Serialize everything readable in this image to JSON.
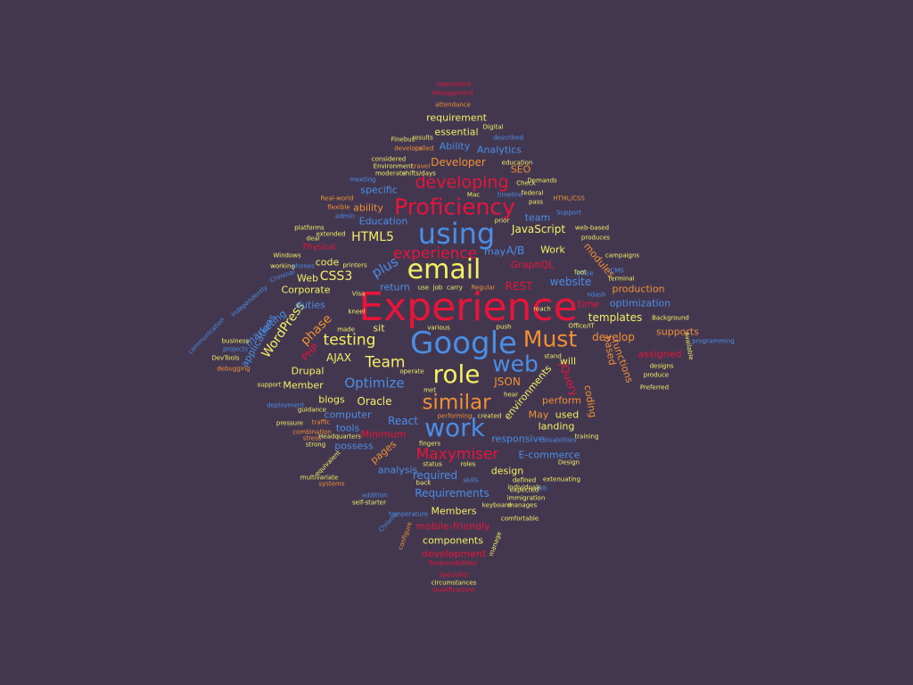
{
  "palette": {
    "background": "#433750",
    "red": "#E8143A",
    "blue": "#4A8FE6",
    "yellow": "#F4F064",
    "orange": "#F29132"
  },
  "words": [
    {
      "text": "Experience",
      "color": "red",
      "weight": 48
    },
    {
      "text": "Google",
      "color": "blue",
      "weight": 38
    },
    {
      "text": "email",
      "color": "yellow",
      "weight": 34
    },
    {
      "text": "using",
      "color": "blue",
      "weight": 36
    },
    {
      "text": "work",
      "color": "blue",
      "weight": 32
    },
    {
      "text": "role",
      "color": "yellow",
      "weight": 32
    },
    {
      "text": "Must",
      "color": "orange",
      "weight": 28
    },
    {
      "text": "web",
      "color": "blue",
      "weight": 28
    },
    {
      "text": "Proficiency",
      "color": "red",
      "weight": 28
    },
    {
      "text": "similar",
      "color": "orange",
      "weight": 26
    },
    {
      "text": "developing",
      "color": "red",
      "weight": 22
    },
    {
      "text": "experience",
      "color": "red",
      "weight": 20
    },
    {
      "text": "Maxymiser",
      "color": "red",
      "weight": 20
    },
    {
      "text": "testing",
      "color": "yellow",
      "weight": 20
    },
    {
      "text": "Team",
      "color": "yellow",
      "weight": 20
    },
    {
      "text": "Optimize",
      "color": "blue",
      "weight": 18
    },
    {
      "text": "plus",
      "color": "blue",
      "weight": 18
    },
    {
      "text": "WordPress",
      "color": "yellow",
      "weight": 16
    },
    {
      "text": "phase",
      "color": "orange",
      "weight": 16
    },
    {
      "text": "HTML5",
      "color": "yellow",
      "weight": 16
    },
    {
      "text": "CSS3",
      "color": "yellow",
      "weight": 16
    },
    {
      "text": "JavaScript",
      "color": "yellow",
      "weight": 14
    },
    {
      "text": "Developer",
      "color": "orange",
      "weight": 14
    },
    {
      "text": "A/B",
      "color": "blue",
      "weight": 14
    },
    {
      "text": "website",
      "color": "blue",
      "weight": 14
    },
    {
      "text": "Requirements",
      "color": "blue",
      "weight": 14
    },
    {
      "text": "jQuery",
      "color": "red",
      "weight": 14
    },
    {
      "text": "environments",
      "color": "yellow",
      "weight": 12
    },
    {
      "text": "React",
      "color": "blue",
      "weight": 14
    },
    {
      "text": "REST",
      "color": "red",
      "weight": 14
    },
    {
      "text": "templates",
      "color": "yellow",
      "weight": 14
    },
    {
      "text": "develop",
      "color": "orange",
      "weight": 14
    },
    {
      "text": "Oracle",
      "color": "yellow",
      "weight": 14
    },
    {
      "text": "required",
      "color": "blue",
      "weight": 14
    },
    {
      "text": "JSON",
      "color": "orange",
      "weight": 14
    },
    {
      "text": "AJAX",
      "color": "yellow",
      "weight": 14
    },
    {
      "text": "GraphQL",
      "color": "red",
      "weight": 12
    },
    {
      "text": "applications",
      "color": "blue",
      "weight": 12
    },
    {
      "text": "Drupal",
      "color": "yellow",
      "weight": 12
    },
    {
      "text": "Member",
      "color": "yellow",
      "weight": 12
    },
    {
      "text": "computer",
      "color": "blue",
      "weight": 12
    },
    {
      "text": "possess",
      "color": "blue",
      "weight": 12
    },
    {
      "text": "mobile-friendly",
      "color": "red",
      "weight": 12
    },
    {
      "text": "components",
      "color": "yellow",
      "weight": 12
    },
    {
      "text": "development",
      "color": "red",
      "weight": 12
    },
    {
      "text": "Members",
      "color": "yellow",
      "weight": 12
    },
    {
      "text": "design",
      "color": "yellow",
      "weight": 12
    },
    {
      "text": "analysis",
      "color": "blue",
      "weight": 12
    },
    {
      "text": "responsive",
      "color": "blue",
      "weight": 12
    },
    {
      "text": "E-commerce",
      "color": "blue",
      "weight": 12
    },
    {
      "text": "landing",
      "color": "yellow",
      "weight": 12
    },
    {
      "text": "perform",
      "color": "orange",
      "weight": 12
    },
    {
      "text": "coding",
      "color": "orange",
      "weight": 12
    },
    {
      "text": "functions",
      "color": "orange",
      "weight": 12
    },
    {
      "text": "assigned",
      "color": "red",
      "weight": 12
    },
    {
      "text": "supports",
      "color": "orange",
      "weight": 12
    },
    {
      "text": "optimization",
      "color": "blue",
      "weight": 12
    },
    {
      "text": "production",
      "color": "orange",
      "weight": 12
    },
    {
      "text": "modules",
      "color": "orange",
      "weight": 12
    },
    {
      "text": "Work",
      "color": "yellow",
      "weight": 12
    },
    {
      "text": "may",
      "color": "blue",
      "weight": 12
    },
    {
      "text": "Education",
      "color": "blue",
      "weight": 12
    },
    {
      "text": "ability",
      "color": "orange",
      "weight": 12
    },
    {
      "text": "specific",
      "color": "blue",
      "weight": 12
    },
    {
      "text": "team",
      "color": "blue",
      "weight": 12
    },
    {
      "text": "SEO",
      "color": "orange",
      "weight": 12
    },
    {
      "text": "Analytics",
      "color": "blue",
      "weight": 12
    },
    {
      "text": "essential",
      "color": "yellow",
      "weight": 12
    },
    {
      "text": "Ability",
      "color": "blue",
      "weight": 12
    },
    {
      "text": "requirement",
      "color": "yellow",
      "weight": 12
    },
    {
      "text": "marketing",
      "color": "blue",
      "weight": 12
    },
    {
      "text": "Corporate",
      "color": "yellow",
      "weight": 12
    },
    {
      "text": "Web",
      "color": "yellow",
      "weight": 12
    },
    {
      "text": "code",
      "color": "yellow",
      "weight": 12
    },
    {
      "text": "duties",
      "color": "blue",
      "weight": 12
    },
    {
      "text": "blogs",
      "color": "yellow",
      "weight": 12
    },
    {
      "text": "tools",
      "color": "blue",
      "weight": 12
    },
    {
      "text": "pages",
      "color": "orange",
      "weight": 12
    },
    {
      "text": "Minimum",
      "color": "red",
      "weight": 12
    },
    {
      "text": "used",
      "color": "yellow",
      "weight": 12
    },
    {
      "text": "May",
      "color": "orange",
      "weight": 12
    },
    {
      "text": "will",
      "color": "yellow",
      "weight": 12
    },
    {
      "text": "based",
      "color": "orange",
      "weight": 12
    },
    {
      "text": "time",
      "color": "red",
      "weight": 12
    },
    {
      "text": "return",
      "color": "blue",
      "weight": 12
    },
    {
      "text": "sit",
      "color": "yellow",
      "weight": 12
    },
    {
      "text": "PHP",
      "color": "red",
      "weight": 12
    },
    {
      "text": "Physical",
      "color": "red",
      "weight": 10
    },
    {
      "text": "attendance",
      "color": "orange",
      "weight": 8
    },
    {
      "text": "described",
      "color": "blue",
      "weight": 8
    },
    {
      "text": "Digital",
      "color": "yellow",
      "weight": 8
    },
    {
      "text": "results",
      "color": "yellow",
      "weight": 8
    },
    {
      "text": "Finebus",
      "color": "yellow",
      "weight": 8
    },
    {
      "text": "develops",
      "color": "orange",
      "weight": 8
    },
    {
      "text": "called",
      "color": "orange",
      "weight": 8
    },
    {
      "text": "education",
      "color": "yellow",
      "weight": 8
    },
    {
      "text": "considered",
      "color": "yellow",
      "weight": 8
    },
    {
      "text": "Environment",
      "color": "yellow",
      "weight": 8
    },
    {
      "text": "travel",
      "color": "orange",
      "weight": 8
    },
    {
      "text": "moderate",
      "color": "yellow",
      "weight": 8
    },
    {
      "text": "shifts/days",
      "color": "yellow",
      "weight": 8
    },
    {
      "text": "meeting",
      "color": "blue",
      "weight": 8
    },
    {
      "text": "Demands",
      "color": "yellow",
      "weight": 8
    },
    {
      "text": "Check",
      "color": "yellow",
      "weight": 8
    },
    {
      "text": "HTML/CSS",
      "color": "orange",
      "weight": 8
    },
    {
      "text": "timeline",
      "color": "blue",
      "weight": 8
    },
    {
      "text": "federal",
      "color": "yellow",
      "weight": 8
    },
    {
      "text": "pass",
      "color": "yellow",
      "weight": 8
    },
    {
      "text": "Support",
      "color": "blue",
      "weight": 8
    },
    {
      "text": "Real-world",
      "color": "orange",
      "weight": 8
    },
    {
      "text": "flexible",
      "color": "orange",
      "weight": 8
    },
    {
      "text": "admin",
      "color": "blue",
      "weight": 8
    },
    {
      "text": "Mac",
      "color": "yellow",
      "weight": 8
    },
    {
      "text": "prior",
      "color": "yellow",
      "weight": 8
    },
    {
      "text": "platforms",
      "color": "yellow",
      "weight": 8
    },
    {
      "text": "extended",
      "color": "yellow",
      "weight": 8
    },
    {
      "text": "deal",
      "color": "yellow",
      "weight": 8
    },
    {
      "text": "web-based",
      "color": "yellow",
      "weight": 8
    },
    {
      "text": "produces",
      "color": "yellow",
      "weight": 8
    },
    {
      "text": "Windows",
      "color": "yellow",
      "weight": 8
    },
    {
      "text": "working",
      "color": "yellow",
      "weight": 8
    },
    {
      "text": "phones",
      "color": "blue",
      "weight": 8
    },
    {
      "text": "printers",
      "color": "yellow",
      "weight": 8
    },
    {
      "text": "campaigns",
      "color": "yellow",
      "weight": 8
    },
    {
      "text": "office",
      "color": "blue",
      "weight": 8
    },
    {
      "text": "CMS",
      "color": "blue",
      "weight": 8
    },
    {
      "text": "terminal",
      "color": "yellow",
      "weight": 8
    },
    {
      "text": "foot",
      "color": "yellow",
      "weight": 8
    },
    {
      "text": "Criminal",
      "color": "blue",
      "weight": 8
    },
    {
      "text": "independently",
      "color": "blue",
      "weight": 8
    },
    {
      "text": "use",
      "color": "yellow",
      "weight": 8
    },
    {
      "text": "job",
      "color": "yellow",
      "weight": 8
    },
    {
      "text": "carry",
      "color": "yellow",
      "weight": 8
    },
    {
      "text": "Regular",
      "color": "orange",
      "weight": 8
    },
    {
      "text": "Visa",
      "color": "yellow",
      "weight": 8
    },
    {
      "text": "ndash",
      "color": "blue",
      "weight": 8
    },
    {
      "text": "reach",
      "color": "yellow",
      "weight": 8
    },
    {
      "text": "kneel",
      "color": "yellow",
      "weight": 8
    },
    {
      "text": "various",
      "color": "yellow",
      "weight": 8
    },
    {
      "text": "made",
      "color": "yellow",
      "weight": 8
    },
    {
      "text": "push",
      "color": "yellow",
      "weight": 8
    },
    {
      "text": "Office/IT",
      "color": "yellow",
      "weight": 8
    },
    {
      "text": "Background",
      "color": "yellow",
      "weight": 8
    },
    {
      "text": "communication",
      "color": "blue",
      "weight": 8
    },
    {
      "text": "business",
      "color": "yellow",
      "weight": 8
    },
    {
      "text": "projects",
      "color": "blue",
      "weight": 8
    },
    {
      "text": "DevTools",
      "color": "yellow",
      "weight": 8
    },
    {
      "text": "debugging",
      "color": "orange",
      "weight": 8
    },
    {
      "text": "stand",
      "color": "yellow",
      "weight": 8
    },
    {
      "text": "Available",
      "color": "yellow",
      "weight": 8
    },
    {
      "text": "programming",
      "color": "blue",
      "weight": 8
    },
    {
      "text": "designs",
      "color": "yellow",
      "weight": 8
    },
    {
      "text": "produce",
      "color": "yellow",
      "weight": 8
    },
    {
      "text": "Preferred",
      "color": "yellow",
      "weight": 8
    },
    {
      "text": "operate",
      "color": "yellow",
      "weight": 8
    },
    {
      "text": "met",
      "color": "yellow",
      "weight": 8
    },
    {
      "text": "hear",
      "color": "yellow",
      "weight": 8
    },
    {
      "text": "support",
      "color": "yellow",
      "weight": 8
    },
    {
      "text": "deployment",
      "color": "blue",
      "weight": 8
    },
    {
      "text": "guidance",
      "color": "yellow",
      "weight": 8
    },
    {
      "text": "pressure",
      "color": "yellow",
      "weight": 8
    },
    {
      "text": "traffic",
      "color": "orange",
      "weight": 8
    },
    {
      "text": "combination",
      "color": "orange",
      "weight": 8
    },
    {
      "text": "stress",
      "color": "orange",
      "weight": 8
    },
    {
      "text": "Headquarters",
      "color": "yellow",
      "weight": 8
    },
    {
      "text": "strong",
      "color": "yellow",
      "weight": 8
    },
    {
      "text": "performing",
      "color": "orange",
      "weight": 8
    },
    {
      "text": "created",
      "color": "yellow",
      "weight": 8
    },
    {
      "text": "fingers",
      "color": "yellow",
      "weight": 8
    },
    {
      "text": "disabilities",
      "color": "blue",
      "weight": 8
    },
    {
      "text": "training",
      "color": "yellow",
      "weight": 8
    },
    {
      "text": "equivalent",
      "color": "yellow",
      "weight": 8
    },
    {
      "text": "multivariate",
      "color": "yellow",
      "weight": 8
    },
    {
      "text": "systems",
      "color": "orange",
      "weight": 8
    },
    {
      "text": "status",
      "color": "yellow",
      "weight": 8
    },
    {
      "text": "roles",
      "color": "yellow",
      "weight": 8
    },
    {
      "text": "back",
      "color": "yellow",
      "weight": 8
    },
    {
      "text": "skills",
      "color": "blue",
      "weight": 8
    },
    {
      "text": "defined",
      "color": "yellow",
      "weight": 8
    },
    {
      "text": "Design",
      "color": "yellow",
      "weight": 8
    },
    {
      "text": "extenuating",
      "color": "yellow",
      "weight": 8
    },
    {
      "text": "individuals",
      "color": "yellow",
      "weight": 8
    },
    {
      "text": "Job",
      "color": "blue",
      "weight": 8
    },
    {
      "text": "expected",
      "color": "yellow",
      "weight": 8
    },
    {
      "text": "immigration",
      "color": "yellow",
      "weight": 8
    },
    {
      "text": "addition",
      "color": "blue",
      "weight": 8
    },
    {
      "text": "self-starter",
      "color": "yellow",
      "weight": 8
    },
    {
      "text": "temperature",
      "color": "blue",
      "weight": 8
    },
    {
      "text": "keyboard",
      "color": "yellow",
      "weight": 8
    },
    {
      "text": "manages",
      "color": "yellow",
      "weight": 8
    },
    {
      "text": "comfortable",
      "color": "yellow",
      "weight": 8
    },
    {
      "text": "Chrome",
      "color": "blue",
      "weight": 8
    },
    {
      "text": "configure",
      "color": "orange",
      "weight": 8
    },
    {
      "text": "manage",
      "color": "yellow",
      "weight": 8
    },
    {
      "text": "circumstances",
      "color": "yellow",
      "weight": 8
    },
    {
      "text": "Operations",
      "color": "red",
      "weight": 8
    },
    {
      "text": "Management",
      "color": "red",
      "weight": 8
    },
    {
      "text": "Responsibilities",
      "color": "red",
      "weight": 8
    },
    {
      "text": "Specialist",
      "color": "red",
      "weight": 8
    },
    {
      "text": "Qualifications",
      "color": "red",
      "weight": 8
    }
  ]
}
